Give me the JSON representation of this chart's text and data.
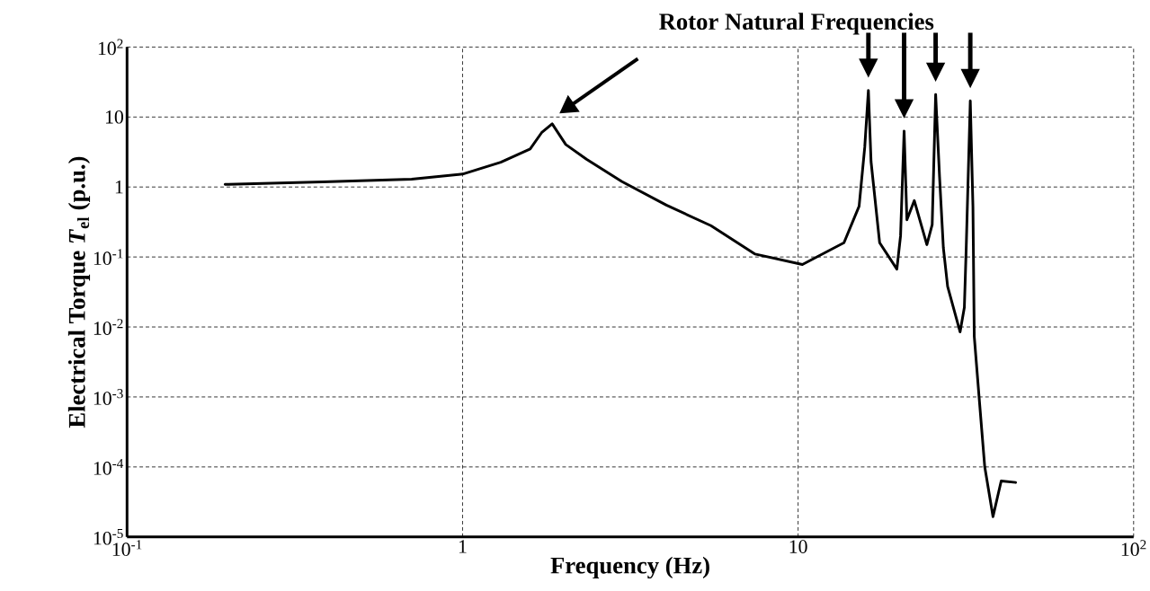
{
  "chart_data": {
    "type": "line",
    "xlabel": "Frequency (Hz)",
    "ylabel": "Electrical Torque  *T*$_{el}$  (p.u.)",
    "annotations": [
      "Rotor Natural Frequencies"
    ],
    "log": "xy",
    "grid": true,
    "marker": "none",
    "line_style": "solid",
    "xlim": [
      0.1,
      100
    ],
    "ylim": [
      1e-05,
      100
    ],
    "xticks": [
      {
        "value": 0.1,
        "label": "10$^{-1}$"
      },
      1,
      10,
      {
        "value": 100,
        "label": "10$^{2}$"
      }
    ],
    "yticks": [
      {
        "value": 1e-05,
        "label": "10$^{-5}$"
      },
      {
        "value": 0.0001,
        "label": "10$^{-4}$"
      },
      {
        "value": 0.001,
        "label": "10$^{-3}$"
      },
      {
        "value": 0.01,
        "label": "10$^{-2}$"
      },
      {
        "value": 0.1,
        "label": "10$^{-1}$"
      },
      1,
      10,
      {
        "value": 100,
        "label": "10$^{2}$"
      }
    ],
    "series": [
      {
        "color": "#000000",
        "x": [
          0.196,
          0.383,
          0.705,
          1.0,
          1.3,
          1.59,
          1.72,
          1.85,
          2.03,
          2.34,
          2.98,
          4.05,
          5.5,
          7.45,
          10.3,
          13.7,
          15.2,
          15.8,
          16.2,
          16.5,
          17.5,
          19.7,
          20.2,
          20.7,
          21.1,
          22.2,
          24.2,
          25.1,
          25.7,
          26.4,
          27.1,
          27.9,
          30.4,
          31.3,
          31.7,
          32.6,
          33.2,
          33.5,
          34.6,
          36.0,
          38.1,
          40.3,
          44.5
        ],
        "values": [
          1.09,
          1.18,
          1.29,
          1.53,
          2.26,
          3.5,
          5.97,
          8.0,
          4.05,
          2.49,
          1.2,
          0.55,
          0.28,
          0.11,
          0.078,
          0.16,
          0.53,
          3.7,
          24,
          2.3,
          0.16,
          0.067,
          0.2,
          6.3,
          0.34,
          0.64,
          0.15,
          0.29,
          21,
          1.4,
          0.135,
          0.038,
          0.0085,
          0.019,
          0.135,
          17,
          0.53,
          0.0073,
          0.00105,
          0.0001,
          1.95e-05,
          6.3e-05,
          6e-05
        ]
      }
    ]
  }
}
